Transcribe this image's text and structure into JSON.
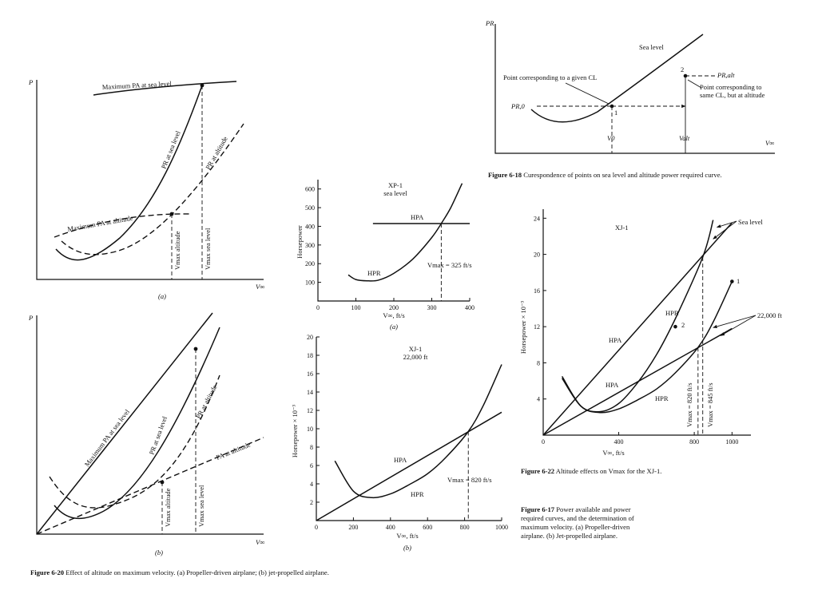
{
  "figure_6_20": {
    "caption_num": "Figure 6-20",
    "caption_text": "Effect of altitude on maximum velocity. (a) Propeller-driven airplane; (b) jet-propelled airplane.",
    "a": {
      "y_axis": "P",
      "x_axis": "V∞",
      "panel": "(a)",
      "max_pa_sea": "Maximum PA at sea level",
      "max_pa_alt": "Maximum PA at altitude",
      "pr_sea": "PR at sea level",
      "pr_alt": "PR at altitude",
      "vmax_alt": "Vmax altitude",
      "vmax_sea": "Vmax sea level"
    },
    "b": {
      "y_axis": "P",
      "x_axis": "V∞",
      "panel": "(b)",
      "max_pa_sea": "Maximum PA at sea level",
      "pa_alt": "PA at altitude",
      "pr_sea": "PR at sea level",
      "pr_alt": "PR at altitude",
      "vmax_alt": "Vmax altitude",
      "vmax_sea": "Vmax sea level"
    }
  },
  "figure_6_17": {
    "caption_num": "Figure 6-17",
    "caption_text": "Power available and power required curves, and the determination of maximum velocity. (a) Propeller-driven airplane. (b) Jet-propelled airplane.",
    "a": {
      "title": "XP-1",
      "subtitle": "sea level",
      "ylabel": "Horsepower",
      "xlabel": "V∞, ft/s",
      "panel": "(a)",
      "hpa": "HPA",
      "hpr": "HPR",
      "vmax": "Vmax = 325 ft/s"
    },
    "b": {
      "title": "XJ-1",
      "subtitle": "22,000 ft",
      "ylabel": "Horsepower × 10⁻³",
      "xlabel": "V∞, ft/s",
      "panel": "(b)",
      "hpa": "HPA",
      "hpr": "HPR",
      "vmax": "Vmax = 820 ft/s"
    }
  },
  "figure_6_18": {
    "caption_num": "Figure 6-18",
    "caption_text": "Curespondence of points on sea level and altitude power required curve.",
    "y_axis": "PR",
    "x_axis": "V∞",
    "sea_level": "Sea level",
    "point_given": "Point corresponding to a given CL",
    "point_same": "Point corresponding to same CL, but at altitude",
    "pr0": "PR,0",
    "pralt": "PR,alt",
    "v0": "V0",
    "valt": "Valt",
    "pt1": "1",
    "pt2": "2"
  },
  "figure_6_22": {
    "caption_num": "Figure 6-22",
    "caption_text": "Altitude effects on Vmax for the XJ-1.",
    "title": "XJ-1",
    "ylabel": "Horsepower × 10⁻³",
    "xlabel": "V∞, ft/s",
    "sea_level": "Sea level",
    "alt": "22,000 ft",
    "hpa": "HPA",
    "hpr": "HPR",
    "pt1": "1",
    "pt2": "2",
    "vmax820": "Vmax = 820 ft/s",
    "vmax845": "Vmax = 845 ft/s"
  },
  "chart_data": [
    {
      "type": "line",
      "title": "XP-1 sea level",
      "xlabel": "V∞, ft/s",
      "ylabel": "Horsepower",
      "xlim": [
        0,
        400
      ],
      "ylim": [
        0,
        650
      ],
      "x_ticks": [
        0,
        100,
        200,
        300,
        400
      ],
      "y_ticks": [
        100,
        200,
        300,
        400,
        500,
        600
      ],
      "series": [
        {
          "name": "HPA",
          "x": [
            145,
            400
          ],
          "values": [
            415,
            415
          ]
        },
        {
          "name": "HPR",
          "x": [
            80,
            100,
            130,
            160,
            200,
            250,
            300,
            325,
            350,
            380
          ],
          "values": [
            140,
            115,
            108,
            112,
            148,
            225,
            340,
            415,
            500,
            630
          ]
        }
      ],
      "annotation": "Vmax = 325 ft/s"
    },
    {
      "type": "line",
      "title": "XJ-1 22,000 ft",
      "xlabel": "V∞, ft/s",
      "ylabel": "Horsepower × 10⁻³",
      "xlim": [
        0,
        1000
      ],
      "ylim": [
        0,
        20
      ],
      "x_ticks": [
        0,
        200,
        400,
        600,
        800,
        1000
      ],
      "y_ticks": [
        2,
        4,
        6,
        8,
        10,
        12,
        14,
        16,
        18,
        20
      ],
      "series": [
        {
          "name": "HPA",
          "x": [
            0,
            1000
          ],
          "values": [
            0,
            11.8
          ]
        },
        {
          "name": "HPR",
          "x": [
            100,
            200,
            300,
            400,
            500,
            600,
            700,
            820,
            900,
            1000
          ],
          "values": [
            6.5,
            3.2,
            2.5,
            2.9,
            3.9,
            5.1,
            6.9,
            9.7,
            12.5,
            17
          ]
        }
      ],
      "annotation": "Vmax = 820 ft/s"
    },
    {
      "type": "line",
      "title": "XJ-1",
      "xlabel": "V∞, ft/s",
      "ylabel": "Horsepower × 10⁻³",
      "xlim": [
        0,
        1100
      ],
      "ylim": [
        0,
        25
      ],
      "x_ticks": [
        0,
        400,
        800,
        1000
      ],
      "x_tick_labels": [
        "0",
        "400",
        "800",
        "1000"
      ],
      "y_ticks": [
        4,
        8,
        12,
        16,
        20,
        24
      ],
      "series": [
        {
          "name": "HPA sea level",
          "x": [
            0,
            1000
          ],
          "values": [
            0,
            23.5
          ]
        },
        {
          "name": "HPR sea level",
          "x": [
            100,
            200,
            300,
            400,
            500,
            600,
            700,
            845,
            900
          ],
          "values": [
            6.3,
            3.2,
            2.6,
            3.5,
            5.8,
            8.9,
            12.9,
            19.7,
            23.8
          ]
        },
        {
          "name": "HPA 22,000 ft",
          "x": [
            0,
            1000
          ],
          "values": [
            0,
            11.8
          ]
        },
        {
          "name": "HPR 22,000 ft",
          "x": [
            100,
            200,
            300,
            400,
            500,
            600,
            700,
            820,
            900,
            1000
          ],
          "values": [
            6.5,
            3.2,
            2.5,
            2.9,
            3.9,
            5.1,
            6.9,
            9.7,
            12.5,
            17
          ]
        }
      ],
      "annotations": [
        "Vmax = 820 ft/s",
        "Vmax = 845 ft/s",
        "Sea level",
        "22,000 ft"
      ]
    }
  ]
}
